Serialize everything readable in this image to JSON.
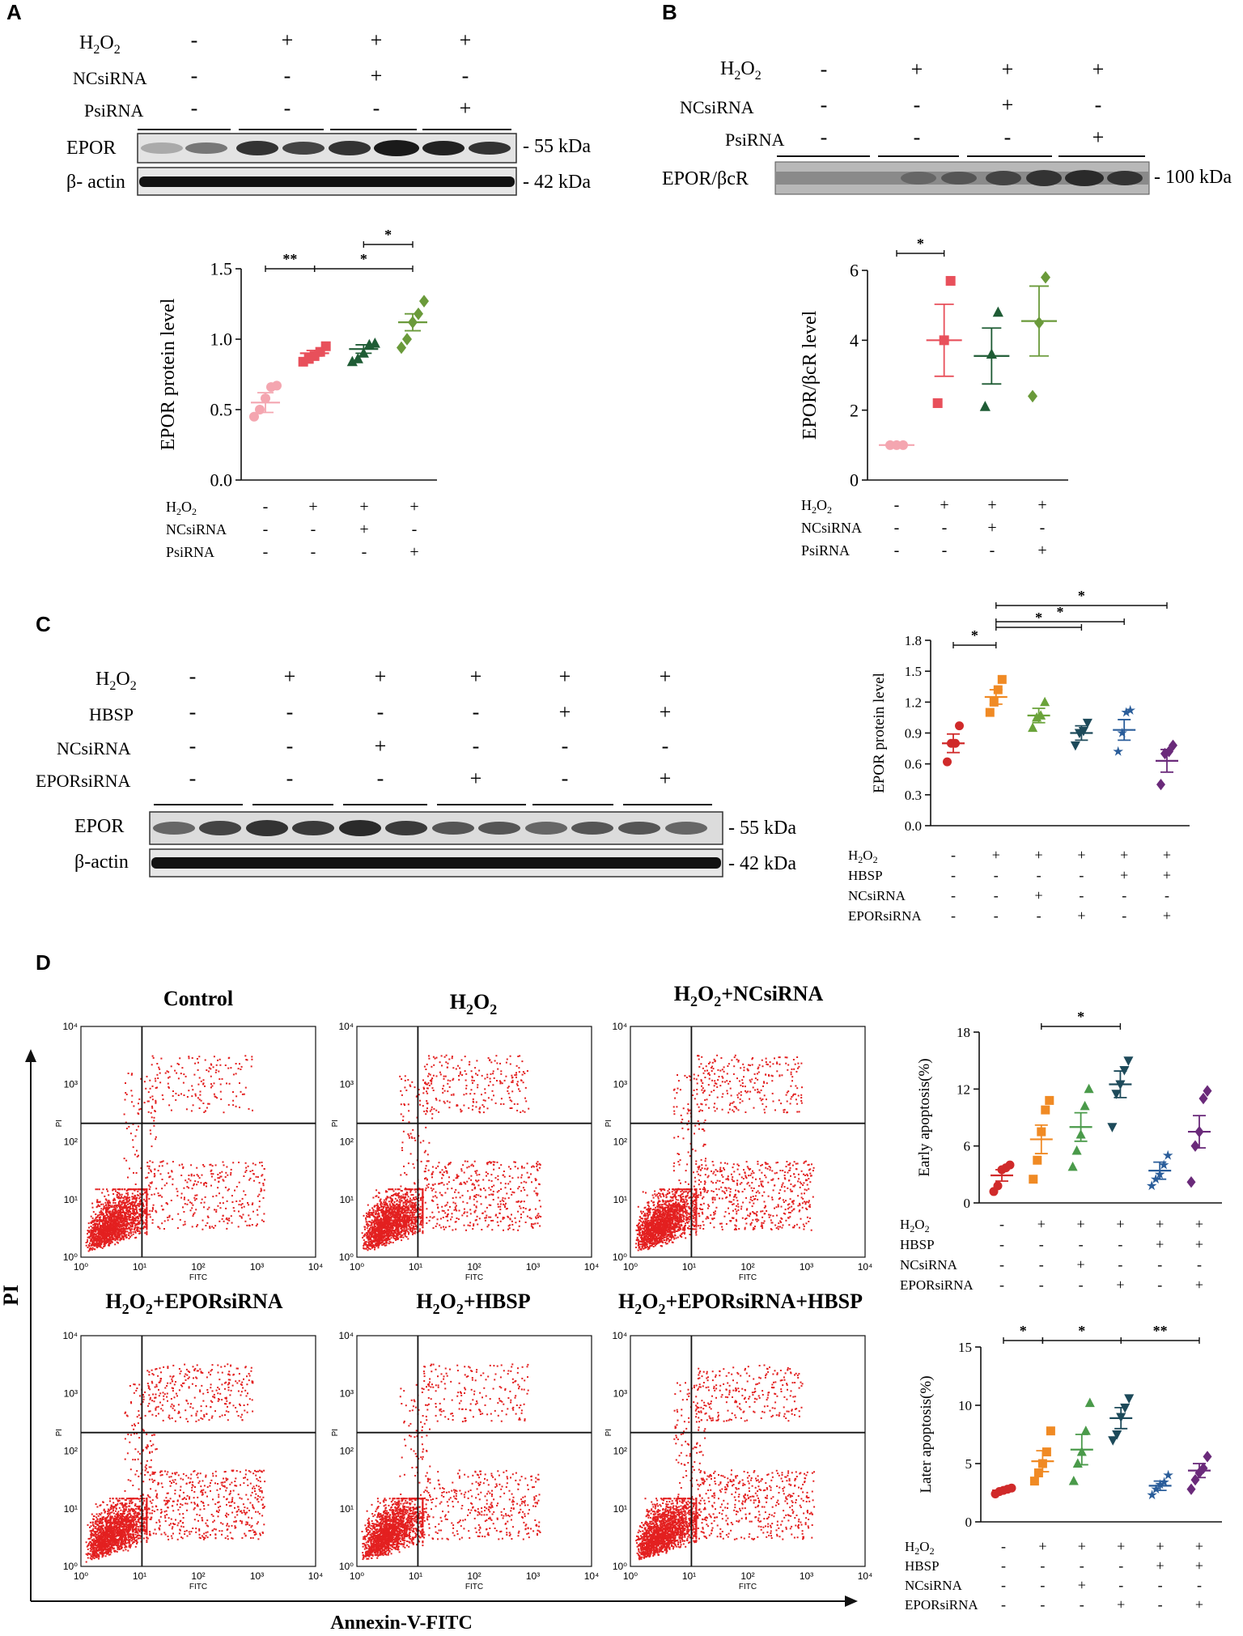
{
  "figure": {
    "panel_labels": [
      "A",
      "B",
      "C",
      "D"
    ],
    "kda_55": "- 55 kDa",
    "kda_42": "- 42 kDa",
    "kda_100": "- 100 kDa",
    "plus": "+",
    "minus": "-",
    "sig1": "*",
    "sig2": "**"
  },
  "panelA": {
    "rows": [
      "H2O2",
      "NCsiRNA",
      "PsiRNA"
    ],
    "signs": [
      [
        "-",
        "+",
        "+",
        "+"
      ],
      [
        "-",
        "-",
        "+",
        "-"
      ],
      [
        "-",
        "-",
        "-",
        "+"
      ]
    ],
    "blot_labels": [
      "EPOR",
      "β- actin"
    ]
  },
  "panelB": {
    "rows": [
      "H2O2",
      "NCsiRNA",
      "PsiRNA"
    ],
    "signs": [
      [
        "-",
        "+",
        "+",
        "+"
      ],
      [
        "-",
        "-",
        "+",
        "-"
      ],
      [
        "-",
        "-",
        "-",
        "+"
      ]
    ],
    "blot_labels": [
      "EPOR/βcR"
    ]
  },
  "panelC": {
    "rows": [
      "H2O2",
      "HBSP",
      "NCsiRNA",
      "EPORsiRNA"
    ],
    "signs": [
      [
        "-",
        "+",
        "+",
        "+",
        "+",
        "+"
      ],
      [
        "-",
        "-",
        "-",
        "-",
        "+",
        "+"
      ],
      [
        "-",
        "-",
        "+",
        "-",
        "-",
        "-"
      ],
      [
        "-",
        "-",
        "-",
        "+",
        "-",
        "+"
      ]
    ],
    "blot_labels": [
      "EPOR",
      "β-actin"
    ]
  },
  "panelD": {
    "flow_titles": [
      "Control",
      "H2O2",
      "H2O2+NCsiRNA",
      "H2O2+EPORsiRNA",
      "H2O2+HBSP",
      "H2O2+EPORsiRNA+HBSP"
    ],
    "flow_x_ticks": [
      "10⁰",
      "10¹",
      "10²",
      "10³",
      "10⁴"
    ],
    "flow_y_ticks": [
      "10⁰",
      "10¹",
      "10²",
      "10³",
      "10⁴"
    ],
    "flow_x_label": "FITC",
    "flow_y_label": "PI",
    "outer_y_label": "PI",
    "outer_x_label": "Annexin-V-FITC",
    "rows": [
      "H2O2",
      "HBSP",
      "NCsiRNA",
      "EPORsiRNA"
    ],
    "signs": [
      [
        "-",
        "+",
        "+",
        "+",
        "+",
        "+"
      ],
      [
        "-",
        "-",
        "-",
        "-",
        "+",
        "+"
      ],
      [
        "-",
        "-",
        "+",
        "-",
        "-",
        "-"
      ],
      [
        "-",
        "-",
        "-",
        "+",
        "-",
        "+"
      ]
    ]
  },
  "chart_data": [
    {
      "id": "A",
      "type": "scatter",
      "ylabel": "EPOR protein level",
      "ylim": [
        0,
        1.5
      ],
      "yticks": [
        "0.0",
        "0.5",
        "1.0",
        "1.5"
      ],
      "groups": [
        {
          "points": [
            0.45,
            0.5,
            0.58,
            0.66,
            0.67
          ],
          "mean": 0.55,
          "sem": 0.07,
          "color": "#f4a6b0",
          "marker": "circle"
        },
        {
          "points": [
            0.84,
            0.86,
            0.88,
            0.91,
            0.95
          ],
          "mean": 0.9,
          "sem": 0.02,
          "color": "#e8505b",
          "marker": "square"
        },
        {
          "points": [
            0.84,
            0.86,
            0.9,
            0.96,
            0.97
          ],
          "mean": 0.93,
          "sem": 0.03,
          "color": "#1f5c35",
          "marker": "triangle"
        },
        {
          "points": [
            0.94,
            1.0,
            1.12,
            1.18,
            1.27
          ],
          "mean": 1.12,
          "sem": 0.06,
          "color": "#6a9a3a",
          "marker": "diamond"
        }
      ],
      "brackets": [
        {
          "from": 0,
          "to": 1,
          "label": "**"
        },
        {
          "from": 1,
          "to": 3,
          "label": "*"
        },
        {
          "from": 2,
          "to": 3,
          "label": "*"
        }
      ]
    },
    {
      "id": "B",
      "type": "scatter",
      "ylabel": "EPOR/βcR level",
      "ylim": [
        0,
        6
      ],
      "yticks": [
        "0",
        "2",
        "4",
        "6"
      ],
      "groups": [
        {
          "points": [
            1.0,
            1.0,
            1.0
          ],
          "mean": 1.0,
          "sem": 0.0,
          "color": "#f4a6b0",
          "marker": "circle"
        },
        {
          "points": [
            2.2,
            4.0,
            5.7
          ],
          "mean": 4.0,
          "sem": 1.03,
          "color": "#e8505b",
          "marker": "square"
        },
        {
          "points": [
            2.1,
            3.6,
            4.8
          ],
          "mean": 3.55,
          "sem": 0.8,
          "color": "#1f5c35",
          "marker": "triangle"
        },
        {
          "points": [
            2.4,
            4.5,
            5.8
          ],
          "mean": 4.55,
          "sem": 1.0,
          "color": "#6a9a3a",
          "marker": "diamond"
        }
      ],
      "brackets": [
        {
          "from": 0,
          "to": 1,
          "label": "*"
        }
      ]
    },
    {
      "id": "C",
      "type": "scatter",
      "ylabel": "EPOR protein level",
      "ylim": [
        0,
        1.8
      ],
      "yticks": [
        "0.0",
        "0.3",
        "0.6",
        "0.9",
        "1.2",
        "1.5",
        "1.8"
      ],
      "groups": [
        {
          "points": [
            0.62,
            0.8,
            0.8,
            0.97
          ],
          "mean": 0.8,
          "sem": 0.09,
          "color": "#d02a2a",
          "marker": "circle"
        },
        {
          "points": [
            1.1,
            1.2,
            1.32,
            1.42
          ],
          "mean": 1.25,
          "sem": 0.07,
          "color": "#f08a24",
          "marker": "square"
        },
        {
          "points": [
            0.95,
            1.05,
            1.07,
            1.2
          ],
          "mean": 1.07,
          "sem": 0.07,
          "color": "#6aa33a",
          "marker": "triangle"
        },
        {
          "points": [
            0.78,
            0.9,
            0.92,
            1.0
          ],
          "mean": 0.9,
          "sem": 0.07,
          "color": "#1d4a5a",
          "marker": "triangle-down"
        },
        {
          "points": [
            0.72,
            0.9,
            1.1,
            1.12
          ],
          "mean": 0.93,
          "sem": 0.1,
          "color": "#2a5d9a",
          "marker": "star"
        },
        {
          "points": [
            0.4,
            0.7,
            0.72,
            0.78
          ],
          "mean": 0.63,
          "sem": 0.11,
          "color": "#6a2a7a",
          "marker": "diamond"
        }
      ],
      "brackets": [
        {
          "from": 0,
          "to": 1,
          "label": "*"
        },
        {
          "from": 1,
          "to": 3,
          "label": "*"
        },
        {
          "from": 1,
          "to": 4,
          "label": "*"
        },
        {
          "from": 1,
          "to": 5,
          "label": "*"
        }
      ]
    },
    {
      "id": "D-early",
      "type": "scatter",
      "ylabel": "Early apoptosis(%)",
      "ylim": [
        0,
        18
      ],
      "yticks": [
        "0",
        "6",
        "12",
        "18"
      ],
      "groups": [
        {
          "points": [
            1.2,
            1.8,
            3.5,
            3.7,
            4.0
          ],
          "mean": 2.9,
          "sem": 0.6,
          "color": "#d02a2a",
          "marker": "circle"
        },
        {
          "points": [
            2.5,
            4.5,
            7.5,
            9.8,
            10.8
          ],
          "mean": 6.7,
          "sem": 1.5,
          "color": "#f08a24",
          "marker": "square"
        },
        {
          "points": [
            3.8,
            5.5,
            7.2,
            10.2,
            12.0
          ],
          "mean": 8.0,
          "sem": 1.5,
          "color": "#4a9a4a",
          "marker": "triangle"
        },
        {
          "points": [
            8.0,
            11.5,
            12.5,
            14.0,
            15.0
          ],
          "mean": 12.5,
          "sem": 1.4,
          "color": "#1d4a5a",
          "marker": "triangle-down"
        },
        {
          "points": [
            1.8,
            2.5,
            3.0,
            4.0,
            5.0
          ],
          "mean": 3.4,
          "sem": 0.9,
          "color": "#2a5d9a",
          "marker": "star"
        },
        {
          "points": [
            2.2,
            6.0,
            7.5,
            11.0,
            11.8
          ],
          "mean": 7.5,
          "sem": 1.7,
          "color": "#6a2a7a",
          "marker": "diamond"
        }
      ],
      "brackets": [
        {
          "from": 1,
          "to": 3,
          "label": "*"
        }
      ]
    },
    {
      "id": "D-later",
      "type": "scatter",
      "ylabel": "Later apoptosis(%)",
      "ylim": [
        0,
        15
      ],
      "yticks": [
        "0",
        "5",
        "10",
        "15"
      ],
      "groups": [
        {
          "points": [
            2.4,
            2.6,
            2.7,
            2.8,
            2.9
          ],
          "mean": 2.7,
          "sem": 0.1,
          "color": "#d02a2a",
          "marker": "circle"
        },
        {
          "points": [
            3.5,
            4.2,
            5.0,
            6.0,
            7.8
          ],
          "mean": 5.2,
          "sem": 0.9,
          "color": "#f08a24",
          "marker": "square"
        },
        {
          "points": [
            3.5,
            5.0,
            6.0,
            7.8,
            10.2
          ],
          "mean": 6.2,
          "sem": 1.3,
          "color": "#4a9a4a",
          "marker": "triangle"
        },
        {
          "points": [
            7.0,
            7.5,
            9.0,
            9.8,
            10.6
          ],
          "mean": 8.9,
          "sem": 0.9,
          "color": "#1d4a5a",
          "marker": "triangle-down"
        },
        {
          "points": [
            2.3,
            2.8,
            3.2,
            3.4,
            4.0
          ],
          "mean": 3.1,
          "sem": 0.4,
          "color": "#2a5d9a",
          "marker": "star"
        },
        {
          "points": [
            2.8,
            3.6,
            4.2,
            4.6,
            5.6
          ],
          "mean": 4.4,
          "sem": 0.6,
          "color": "#6a2a7a",
          "marker": "diamond"
        }
      ],
      "brackets": [
        {
          "from": 0,
          "to": 1,
          "label": "*"
        },
        {
          "from": 1,
          "to": 3,
          "label": "*"
        },
        {
          "from": 3,
          "to": 5,
          "label": "**"
        }
      ]
    }
  ]
}
